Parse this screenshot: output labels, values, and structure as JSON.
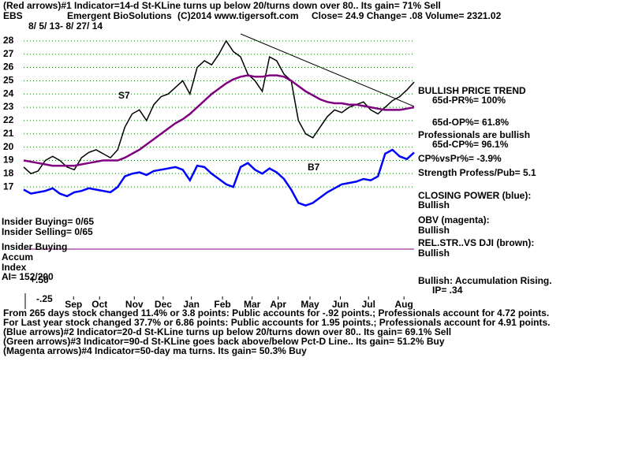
{
  "chart_data": {
    "type": "line",
    "title": "(Red arrows)#1 Indicator=14-d St-KLine turns up below 20/turns down over 80.. Its gain= 71% Sell",
    "header": [
      "EBS",
      "Emergent BioSolutions",
      "(C)2014 www.tigersoft.com",
      "Close= 24.9  Change= .08 Volume= 2321.02"
    ],
    "date_range": "8/ 5/ 13- 8/ 27/ 14",
    "x": [
      0,
      1,
      2,
      3,
      4,
      5,
      6,
      7,
      8,
      9,
      10,
      11,
      12,
      13,
      14,
      15,
      16,
      17,
      18,
      19,
      20,
      21,
      22,
      23,
      24,
      25,
      26,
      27,
      28,
      29,
      30,
      31,
      32,
      33,
      34,
      35,
      36,
      37,
      38,
      39,
      40,
      41,
      42,
      43,
      44,
      45,
      46,
      47,
      48,
      49,
      50,
      51,
      52,
      53,
      54
    ],
    "xlim": [
      0,
      54
    ],
    "xticks": [
      {
        "value": 6.9,
        "label": "Sep"
      },
      {
        "value": 10.5,
        "label": "Oct"
      },
      {
        "value": 15.3,
        "label": "Nov"
      },
      {
        "value": 19.3,
        "label": "Dec"
      },
      {
        "value": 23.2,
        "label": "Jan"
      },
      {
        "value": 27.5,
        "label": "Feb"
      },
      {
        "value": 31.6,
        "label": "Mar"
      },
      {
        "value": 35.2,
        "label": "Apr"
      },
      {
        "value": 39.6,
        "label": "May"
      },
      {
        "value": 43.8,
        "label": "Jun"
      },
      {
        "value": 47.7,
        "label": "Jul"
      },
      {
        "value": 52.6,
        "label": "Aug"
      }
    ],
    "ylim": [
      16,
      29
    ],
    "yticks": [
      17,
      18,
      19,
      20,
      21,
      22,
      23,
      24,
      25,
      26,
      27,
      28
    ],
    "grid": true,
    "series": [
      {
        "name": "Price",
        "color": "#000000",
        "values": [
          18.5,
          18.0,
          18.2,
          19.0,
          19.3,
          19.0,
          18.5,
          18.3,
          19.2,
          19.6,
          19.8,
          19.5,
          19.2,
          19.8,
          21.5,
          22.5,
          22.8,
          22.0,
          23.2,
          23.8,
          24.0,
          24.5,
          25.0,
          24.0,
          26.0,
          26.5,
          26.2,
          27.0,
          28.0,
          27.2,
          26.8,
          25.5,
          25.0,
          24.2,
          26.8,
          26.5,
          25.5,
          25.0,
          22.0,
          21.0,
          20.7,
          21.5,
          22.3,
          22.8,
          22.6,
          23.0,
          23.2,
          23.4,
          22.8,
          22.5,
          23.0,
          23.5,
          23.8,
          24.3,
          24.9
        ]
      },
      {
        "name": "65-day ma",
        "color": "#800080",
        "values": [
          19.0,
          18.9,
          18.8,
          18.7,
          18.6,
          18.6,
          18.6,
          18.6,
          18.7,
          18.8,
          18.9,
          19.0,
          19.0,
          19.0,
          19.2,
          19.5,
          19.8,
          20.2,
          20.6,
          21.0,
          21.4,
          21.8,
          22.1,
          22.5,
          23.0,
          23.5,
          24.0,
          24.4,
          24.8,
          25.1,
          25.3,
          25.4,
          25.3,
          25.3,
          25.4,
          25.4,
          25.3,
          25.0,
          24.6,
          24.2,
          23.9,
          23.6,
          23.4,
          23.3,
          23.3,
          23.2,
          23.2,
          23.1,
          23.0,
          22.9,
          22.8,
          22.8,
          22.8,
          22.9,
          23.0
        ]
      },
      {
        "name": "CLOSING POWER (blue):",
        "color": "#0000ff",
        "values": [
          16.8,
          16.5,
          16.6,
          16.7,
          16.9,
          16.5,
          16.3,
          16.6,
          16.7,
          16.9,
          16.8,
          16.7,
          16.6,
          17.0,
          17.8,
          18.0,
          18.1,
          17.9,
          18.2,
          18.3,
          18.4,
          18.5,
          18.3,
          17.5,
          18.6,
          18.5,
          18.0,
          17.6,
          17.2,
          17.0,
          18.5,
          18.8,
          18.3,
          18.0,
          18.4,
          18.1,
          17.6,
          16.8,
          15.8,
          15.6,
          15.8,
          16.2,
          16.6,
          16.9,
          17.2,
          17.3,
          17.4,
          17.6,
          17.5,
          17.8,
          19.5,
          19.8,
          19.3,
          19.1,
          19.6
        ]
      }
    ],
    "signals": [
      "S7",
      "B7"
    ],
    "right_notes": [
      "BULLISH PRICE TREND",
      "65d-PR%= 100%",
      "65d-OP%= 61.8%",
      "Professionals are bullish",
      "65d-CP%= 96.1%",
      "CP%vsPr%= -3.9%",
      "Strength Profess/Pub= 5.1",
      "Bullish",
      "OBV (magenta):",
      "Bullish",
      "REL.STR..VS DJI (brown):",
      "Bullish",
      "Bullish: Accumulation Rising.",
      "IP= .34"
    ],
    "left_notes": [
      "Insider Buying= 0/65",
      "Insider Selling= 0/65",
      "Insider Buying",
      "Accum",
      "Index",
      "AI= 152/200",
      "+.50",
      "-.25"
    ],
    "footer": [
      "From 265 days stock changed  11.4% or  3.8 points:  Public accounts for -.92 points.;  Professionals account for  4.72 points.",
      "For Last year stock changed  37.7% or  6.86 points:  Public accounts for  1.95 points.;  Professionals account for  4.91 points.",
      "(Blue arrows)#2 Indicator=20-d St-KLine turns up below 20/turns down over 80.. Its gain= 69.1% Sell",
      "(Green arrows)#3 Indicator=90-d St-KLine goes back above/below Pct-D Line.. Its gain= 51.2% Buy",
      "(Magenta arrows)#4 Indicator=50-day ma turns. Its gain= 50.3% Buy"
    ]
  }
}
